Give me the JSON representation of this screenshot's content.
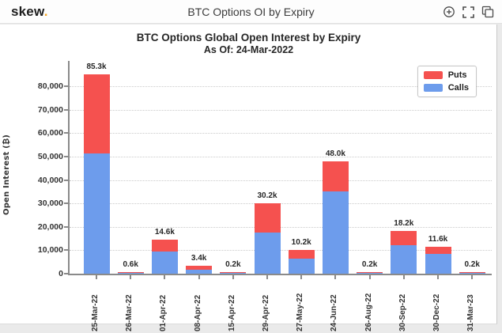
{
  "header": {
    "logo_text": "skew",
    "logo_dot": ".",
    "title": "BTC Options OI by Expiry",
    "icons": [
      "zoom-in-icon",
      "fullscreen-icon",
      "duplicate-icon"
    ]
  },
  "chart_data": {
    "type": "bar",
    "stacked": true,
    "title": "BTC Options Global Open Interest by Expiry",
    "subtitle": "As Of: 24-Mar-2022",
    "ylabel": "Open Interest (₿)",
    "ylim": [
      0,
      90000
    ],
    "ytick_interval": 10000,
    "ytick_labels": [
      "0",
      "10,000",
      "20,000",
      "30,000",
      "40,000",
      "50,000",
      "60,000",
      "70,000",
      "80,000"
    ],
    "grid": "horizontal-dotted",
    "legend_position": "top-right",
    "categories": [
      "25-Mar-22",
      "26-Mar-22",
      "01-Apr-22",
      "08-Apr-22",
      "15-Apr-22",
      "29-Apr-22",
      "27-May-22",
      "24-Jun-22",
      "26-Aug-22",
      "30-Sep-22",
      "30-Dec-22",
      "31-Mar-23"
    ],
    "series": [
      {
        "name": "Calls",
        "color": "#6d9cec",
        "values": [
          51200,
          400,
          9500,
          1800,
          100,
          17600,
          6400,
          35200,
          100,
          12000,
          8600,
          100
        ]
      },
      {
        "name": "Puts",
        "color": "#f5514f",
        "values": [
          34100,
          200,
          5100,
          1600,
          100,
          12600,
          3800,
          12800,
          100,
          6200,
          3000,
          100
        ]
      }
    ],
    "total_labels": [
      "85.3k",
      "0.6k",
      "14.6k",
      "3.4k",
      "0.2k",
      "30.2k",
      "10.2k",
      "48.0k",
      "0.2k",
      "18.2k",
      "11.6k",
      "0.2k"
    ],
    "colors": {
      "puts": "#f5514f",
      "calls": "#6d9cec",
      "axis": "#8a8a8a",
      "grid": "#cbcbcb"
    }
  }
}
